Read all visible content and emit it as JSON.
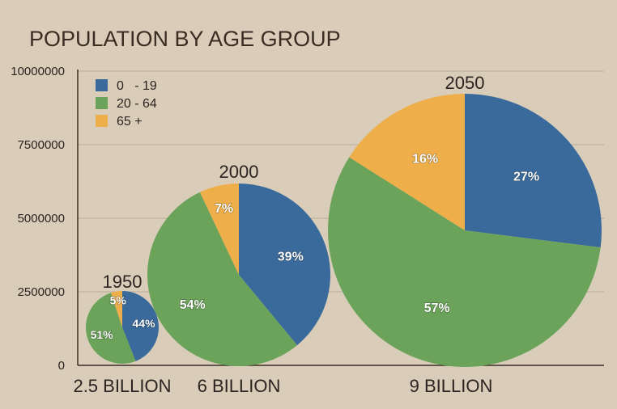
{
  "chart_data": {
    "type": "pie",
    "title": "POPULATION BY AGE GROUP",
    "y_axis": {
      "ylim": [
        0,
        10000000
      ],
      "ticks": [
        0,
        2500000,
        5000000,
        7500000,
        10000000
      ],
      "tick_labels": [
        "0",
        "2500000",
        "5000000",
        "7500000",
        "10000000"
      ],
      "grid": true
    },
    "legend": {
      "placement": "top-left",
      "entries": [
        {
          "label": "0   - 19",
          "color": "#3a6a9c"
        },
        {
          "label": "20 - 64",
          "color": "#6ba35a"
        },
        {
          "label": "65 +",
          "color": "#eeae4a"
        }
      ]
    },
    "pies": [
      {
        "year": "1950",
        "category_label": "2.5 BILLION",
        "total_billion": 2.5,
        "slices": [
          {
            "group": "0   - 19",
            "value": 44,
            "label": "44%"
          },
          {
            "group": "20 - 64",
            "value": 51,
            "label": "51%"
          },
          {
            "group": "65 +",
            "value": 5,
            "label": "5%"
          }
        ]
      },
      {
        "year": "2000",
        "category_label": "6 BILLION",
        "total_billion": 6,
        "slices": [
          {
            "group": "0   - 19",
            "value": 39,
            "label": "39%"
          },
          {
            "group": "20 - 64",
            "value": 54,
            "label": "54%"
          },
          {
            "group": "65 +",
            "value": 7,
            "label": "7%"
          }
        ]
      },
      {
        "year": "2050",
        "category_label": "9 BILLION",
        "total_billion": 9,
        "slices": [
          {
            "group": "0   - 19",
            "value": 27,
            "label": "27%"
          },
          {
            "group": "20 - 64",
            "value": 57,
            "label": "57%"
          },
          {
            "group": "65 +",
            "value": 16,
            "label": "16%"
          }
        ]
      }
    ]
  }
}
